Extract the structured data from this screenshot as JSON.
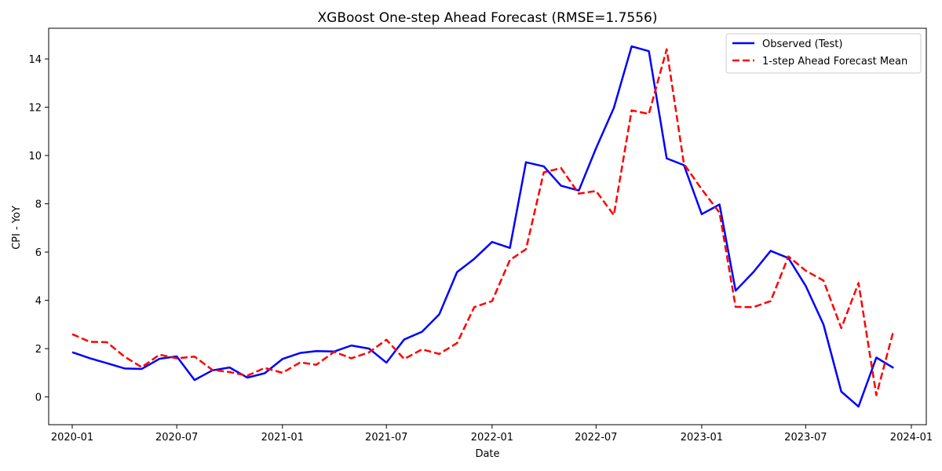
{
  "chart_data": {
    "type": "line",
    "title": "XGBoost One-step Ahead Forecast (RMSE=1.7556)",
    "xlabel": "Date",
    "ylabel": "CPI - YoY",
    "x": [
      "2020-01",
      "2020-02",
      "2020-03",
      "2020-04",
      "2020-05",
      "2020-06",
      "2020-07",
      "2020-08",
      "2020-09",
      "2020-10",
      "2020-11",
      "2020-12",
      "2021-01",
      "2021-02",
      "2021-03",
      "2021-04",
      "2021-05",
      "2021-06",
      "2021-07",
      "2021-08",
      "2021-09",
      "2021-10",
      "2021-11",
      "2021-12",
      "2022-01",
      "2022-02",
      "2022-03",
      "2022-04",
      "2022-05",
      "2022-06",
      "2022-07",
      "2022-08",
      "2022-09",
      "2022-10",
      "2022-11",
      "2022-12",
      "2023-01",
      "2023-02",
      "2023-03",
      "2023-04",
      "2023-05",
      "2023-06",
      "2023-07",
      "2023-08",
      "2023-09",
      "2023-10",
      "2023-11",
      "2023-12"
    ],
    "series": [
      {
        "name": "Observed (Test)",
        "color": "#0000ff",
        "style": "solid",
        "values": [
          1.85,
          1.6,
          1.4,
          1.18,
          1.16,
          1.58,
          1.68,
          0.7,
          1.1,
          1.22,
          0.8,
          0.98,
          1.57,
          1.82,
          1.9,
          1.88,
          2.13,
          2.0,
          1.42,
          2.38,
          2.7,
          3.42,
          5.17,
          5.72,
          6.42,
          6.17,
          9.72,
          9.55,
          8.75,
          8.55,
          10.3,
          11.97,
          14.52,
          14.32,
          9.88,
          9.6,
          7.57,
          7.97,
          4.4,
          5.17,
          6.05,
          5.75,
          4.6,
          3.0,
          0.22,
          -0.4,
          1.63,
          1.2
        ]
      },
      {
        "name": "1-step Ahead Forecast Mean",
        "color": "#ff0000",
        "style": "dashed",
        "values": [
          2.6,
          2.28,
          2.27,
          1.67,
          1.23,
          1.75,
          1.6,
          1.67,
          1.12,
          1.03,
          0.88,
          1.2,
          1.0,
          1.43,
          1.33,
          1.87,
          1.6,
          1.85,
          2.37,
          1.57,
          1.97,
          1.78,
          2.23,
          3.72,
          3.97,
          5.67,
          6.12,
          9.3,
          9.48,
          8.42,
          8.53,
          7.53,
          11.87,
          11.72,
          14.4,
          9.65,
          8.6,
          7.63,
          3.73,
          3.72,
          3.97,
          5.82,
          5.23,
          4.82,
          2.85,
          4.72,
          0.07,
          2.75
        ]
      }
    ],
    "xlim": [
      "2019-11-21",
      "2024-01-27"
    ],
    "ylim": [
      -1.15,
      15.27
    ],
    "xticks": [
      {
        "date": "2020-01-01",
        "label": "2020-01"
      },
      {
        "date": "2020-07-01",
        "label": "2020-07"
      },
      {
        "date": "2021-01-01",
        "label": "2021-01"
      },
      {
        "date": "2021-07-01",
        "label": "2021-07"
      },
      {
        "date": "2022-01-01",
        "label": "2022-01"
      },
      {
        "date": "2022-07-01",
        "label": "2022-07"
      },
      {
        "date": "2023-01-01",
        "label": "2023-01"
      },
      {
        "date": "2023-07-01",
        "label": "2023-07"
      },
      {
        "date": "2024-01-01",
        "label": "2024-01"
      }
    ],
    "yticks": [
      0,
      2,
      4,
      6,
      8,
      10,
      12,
      14
    ],
    "grid": false,
    "legend_position": "top-right"
  }
}
